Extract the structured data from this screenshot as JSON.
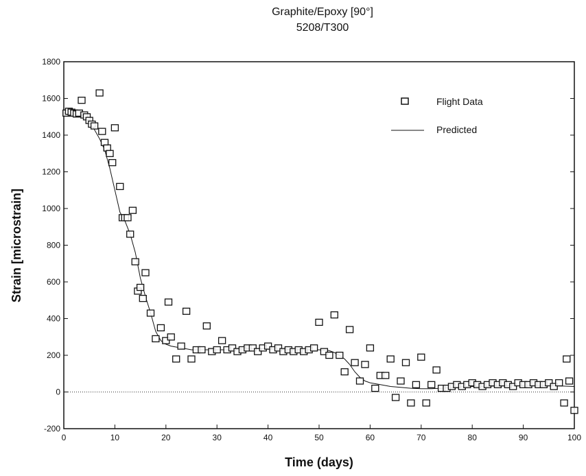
{
  "chart_data": {
    "type": "scatter",
    "title": "Graphite/Epoxy [90°]",
    "subtitle": "5208/T300",
    "xlabel": "Time (days)",
    "ylabel": "Strain [microstrain]",
    "xlim": [
      0,
      100
    ],
    "ylim": [
      -200,
      1800
    ],
    "x_ticks": [
      0,
      10,
      20,
      30,
      40,
      50,
      60,
      70,
      80,
      90,
      100
    ],
    "x_tick_labels": [
      "0",
      "10",
      "20",
      "30",
      "40",
      "50",
      "60",
      "70",
      "80",
      "90",
      "100"
    ],
    "y_ticks": [
      -200,
      0,
      200,
      400,
      600,
      800,
      1000,
      1200,
      1400,
      1600,
      1800
    ],
    "y_tick_labels": [
      "-200",
      "0",
      "200",
      "400",
      "600",
      "800",
      "1000",
      "1200",
      "1400",
      "1600",
      "1800"
    ],
    "grid": false,
    "zero_line": true,
    "legend_position": "top-right",
    "series": [
      {
        "name": "Flight Data",
        "kind": "scatter",
        "marker": "square",
        "x": [
          0.5,
          1,
          1.5,
          2,
          2.5,
          3,
          3.5,
          4,
          4.5,
          5,
          5.5,
          6,
          7,
          7.5,
          8,
          8.5,
          9,
          9.5,
          10,
          11,
          11.5,
          12,
          12.5,
          13,
          13.5,
          14,
          14.5,
          15,
          15.5,
          16,
          17,
          18,
          19,
          20,
          20.5,
          21,
          22,
          23,
          24,
          25,
          26,
          27,
          28,
          29,
          30,
          31,
          32,
          33,
          34,
          35,
          36,
          37,
          38,
          39,
          40,
          41,
          42,
          43,
          44,
          45,
          46,
          47,
          48,
          49,
          50,
          51,
          52,
          53,
          54,
          55,
          56,
          57,
          58,
          59,
          60,
          61,
          62,
          63,
          64,
          65,
          66,
          67,
          68,
          69,
          70,
          71,
          72,
          73,
          74,
          75,
          76,
          77,
          78,
          79,
          80,
          81,
          82,
          83,
          84,
          85,
          86,
          87,
          88,
          89,
          90,
          91,
          92,
          93,
          94,
          95,
          96,
          97,
          98,
          98.5,
          99,
          100
        ],
        "y": [
          1520,
          1530,
          1525,
          1520,
          1515,
          1520,
          1590,
          1510,
          1500,
          1480,
          1460,
          1450,
          1630,
          1420,
          1360,
          1330,
          1300,
          1250,
          1440,
          1120,
          950,
          950,
          950,
          860,
          990,
          710,
          550,
          570,
          510,
          650,
          430,
          290,
          350,
          280,
          490,
          300,
          180,
          250,
          440,
          180,
          230,
          230,
          360,
          220,
          230,
          280,
          230,
          240,
          220,
          230,
          240,
          240,
          220,
          240,
          250,
          230,
          240,
          220,
          230,
          220,
          230,
          220,
          230,
          240,
          380,
          220,
          200,
          420,
          200,
          110,
          340,
          160,
          60,
          150,
          240,
          20,
          90,
          90,
          180,
          -30,
          60,
          160,
          -60,
          40,
          190,
          -60,
          40,
          120,
          20,
          20,
          30,
          40,
          30,
          40,
          50,
          40,
          30,
          40,
          50,
          40,
          50,
          40,
          30,
          50,
          40,
          40,
          50,
          40,
          40,
          50,
          30,
          50,
          -60,
          180,
          60,
          -100
        ],
        "color": "#111111"
      },
      {
        "name": "Predicted",
        "kind": "line",
        "x": [
          0,
          1,
          2,
          3,
          4,
          5,
          6,
          7,
          8,
          9,
          10,
          11,
          12,
          13,
          14,
          15,
          16,
          17,
          18,
          19,
          20,
          21,
          22,
          23,
          24,
          25,
          27,
          30,
          33,
          35,
          40,
          45,
          48,
          50,
          52,
          53,
          54,
          55,
          56,
          57,
          58,
          59,
          60,
          62,
          64,
          66,
          68,
          70,
          72,
          74,
          76,
          78,
          80,
          85,
          90,
          95,
          100
        ],
        "y": [
          1520,
          1525,
          1520,
          1510,
          1500,
          1470,
          1430,
          1380,
          1320,
          1220,
          1100,
          980,
          930,
          860,
          760,
          620,
          520,
          430,
          330,
          280,
          260,
          250,
          245,
          240,
          235,
          230,
          230,
          230,
          230,
          235,
          235,
          230,
          230,
          230,
          225,
          215,
          200,
          180,
          150,
          110,
          80,
          60,
          50,
          40,
          30,
          25,
          20,
          18,
          18,
          20,
          25,
          28,
          30,
          33,
          35,
          35,
          30
        ],
        "color": "#111111"
      }
    ]
  }
}
